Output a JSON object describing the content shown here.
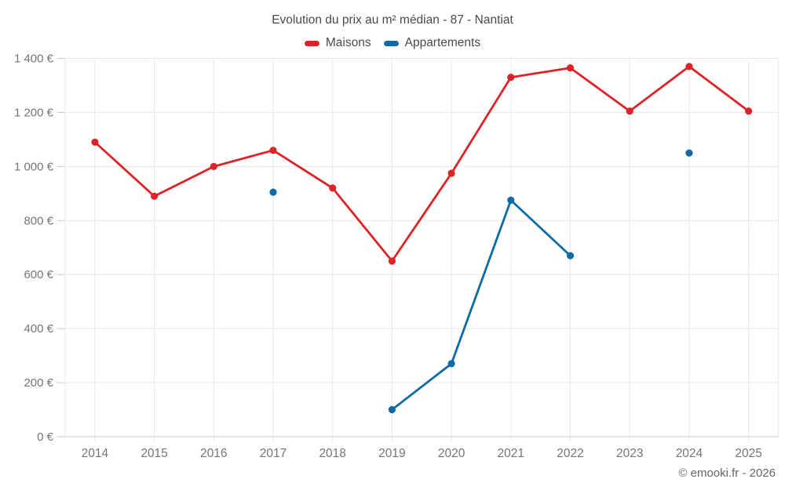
{
  "chart_data": {
    "type": "line",
    "title": "Evolution du prix au m² médian - 87 - Nantiat",
    "categories": [
      "2014",
      "2015",
      "2016",
      "2017",
      "2018",
      "2019",
      "2020",
      "2021",
      "2022",
      "2023",
      "2024",
      "2025"
    ],
    "series": [
      {
        "name": "Maisons",
        "color": "#dc2428",
        "values": [
          1090,
          890,
          1000,
          1060,
          920,
          650,
          975,
          1330,
          1365,
          1205,
          1370,
          1205
        ]
      },
      {
        "name": "Appartements",
        "color": "#0f6ba3",
        "values": [
          null,
          null,
          null,
          905,
          null,
          100,
          270,
          875,
          670,
          null,
          1050,
          null
        ]
      }
    ],
    "xlabel": "",
    "ylabel": "",
    "ylim": [
      0,
      1400
    ],
    "ytick_step": 200,
    "ytick_suffix": " €",
    "grid": true,
    "legend_position": "top",
    "palette": {
      "grid_line": "#e8e8e8",
      "axis_line": "#c9c9c9",
      "tick_label": "#757575",
      "title_text": "#4a4a4a"
    }
  },
  "attribution": "© emooki.fr - 2026"
}
